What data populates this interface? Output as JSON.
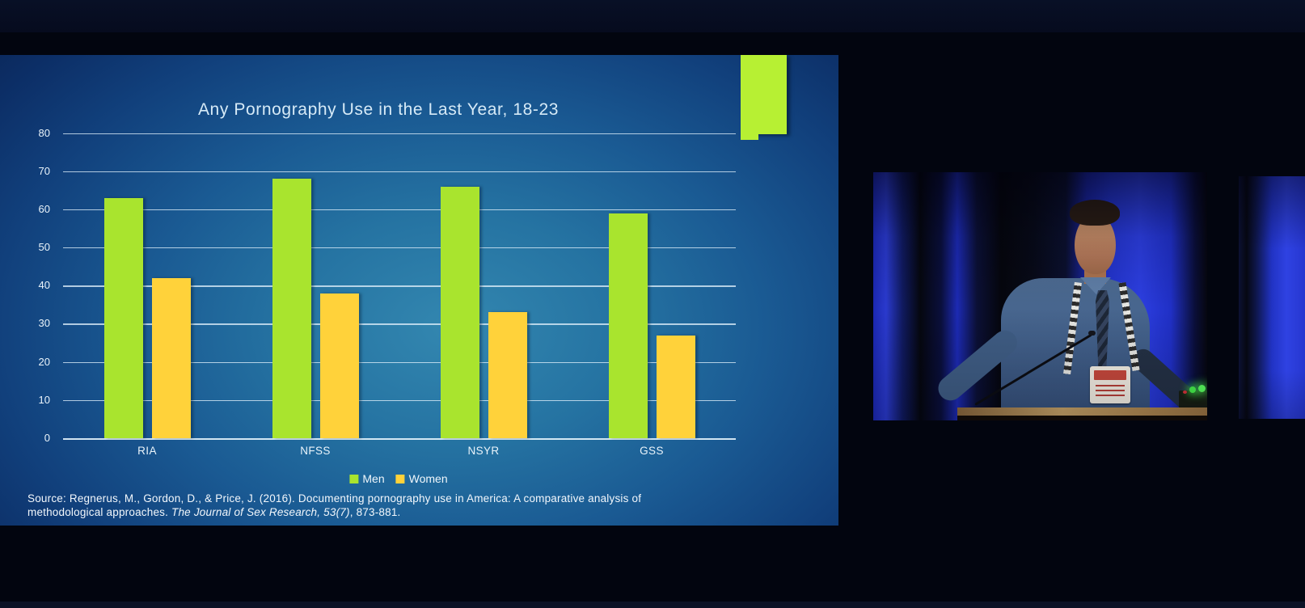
{
  "slide": {
    "source": {
      "line1": "Source: Regnerus, M., Gordon, D., & Price, J. (2016). Documenting pornography use in America: A comparative analysis of",
      "line2_normal": "methodological approaches. ",
      "line2_italic": "The Journal of Sex Research, 53(7)",
      "line2_end": ", 873-881."
    }
  },
  "chart_data": {
    "type": "bar",
    "title": "Any Pornography Use in the Last Year, 18-23",
    "categories": [
      "RIA",
      "NFSS",
      "NSYR",
      "GSS"
    ],
    "series": [
      {
        "name": "Men",
        "color": "#a9e42e",
        "values": [
          63,
          68,
          66,
          59
        ]
      },
      {
        "name": "Women",
        "color": "#ffd23a",
        "values": [
          42,
          38,
          33,
          27
        ]
      }
    ],
    "ylim": [
      0,
      80
    ],
    "yticks": [
      0,
      10,
      20,
      30,
      40,
      50,
      60,
      70,
      80
    ],
    "ytick_step": 10,
    "grid": true,
    "legend_position": "bottom",
    "xlabel": "",
    "ylabel": ""
  },
  "colors": {
    "men_bar": "#a9e42e",
    "women_bar": "#ffd23a",
    "deco_block": "#b7f033",
    "slide_center": "#3387b0",
    "slide_edge": "#0b2a5e",
    "grid_line": "#deeefa",
    "text": "#eaf4fb"
  }
}
